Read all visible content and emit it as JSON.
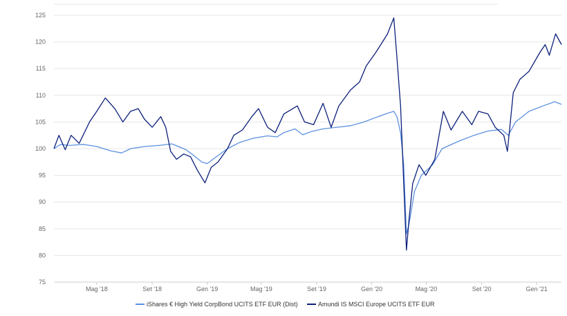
{
  "chart_data": {
    "type": "line",
    "title": "",
    "xlabel": "",
    "ylabel": "",
    "ylim": [
      75,
      125
    ],
    "xlim": [
      "2018-01-26",
      "2021-02-25"
    ],
    "grid": true,
    "legend_position": "bottom",
    "yticks": [
      75,
      80,
      85,
      90,
      95,
      100,
      105,
      110,
      115,
      120,
      125
    ],
    "xticks": [
      {
        "date": "2018-05-01",
        "label": "Mag '18"
      },
      {
        "date": "2018-09-01",
        "label": "Set '18"
      },
      {
        "date": "2019-01-01",
        "label": "Gen '19"
      },
      {
        "date": "2019-05-01",
        "label": "Mag '19"
      },
      {
        "date": "2019-09-01",
        "label": "Set '19"
      },
      {
        "date": "2020-01-01",
        "label": "Gen '20"
      },
      {
        "date": "2020-05-01",
        "label": "Mag '20"
      },
      {
        "date": "2020-09-01",
        "label": "Set '20"
      },
      {
        "date": "2021-01-01",
        "label": "Gen '21"
      }
    ],
    "series": [
      {
        "name": "iShares € High Yield CorpBond UCITS ETF EUR (Dist)",
        "color": "#5b8fe0",
        "points": [
          [
            "2018-01-26",
            100.0
          ],
          [
            "2018-02-10",
            100.8
          ],
          [
            "2018-03-01",
            100.6
          ],
          [
            "2018-04-01",
            100.8
          ],
          [
            "2018-05-01",
            100.4
          ],
          [
            "2018-06-01",
            99.6
          ],
          [
            "2018-06-25",
            99.2
          ],
          [
            "2018-07-15",
            100.0
          ],
          [
            "2018-08-15",
            100.4
          ],
          [
            "2018-09-15",
            100.6
          ],
          [
            "2018-10-15",
            100.9
          ],
          [
            "2018-11-15",
            99.8
          ],
          [
            "2018-12-01",
            98.8
          ],
          [
            "2018-12-20",
            97.5
          ],
          [
            "2019-01-01",
            97.2
          ],
          [
            "2019-01-20",
            98.4
          ],
          [
            "2019-02-15",
            100.0
          ],
          [
            "2019-03-15",
            101.2
          ],
          [
            "2019-04-15",
            102.0
          ],
          [
            "2019-05-15",
            102.4
          ],
          [
            "2019-06-05",
            102.2
          ],
          [
            "2019-06-20",
            103.0
          ],
          [
            "2019-07-15",
            103.7
          ],
          [
            "2019-08-01",
            102.6
          ],
          [
            "2019-08-20",
            103.2
          ],
          [
            "2019-09-15",
            103.7
          ],
          [
            "2019-10-15",
            104.0
          ],
          [
            "2019-11-15",
            104.3
          ],
          [
            "2019-12-15",
            105.0
          ],
          [
            "2020-01-15",
            106.0
          ],
          [
            "2020-02-01",
            106.5
          ],
          [
            "2020-02-19",
            107.0
          ],
          [
            "2020-02-26",
            106.0
          ],
          [
            "2020-03-05",
            103.0
          ],
          [
            "2020-03-12",
            97.0
          ],
          [
            "2020-03-18",
            84.0
          ],
          [
            "2020-03-24",
            86.0
          ],
          [
            "2020-04-05",
            92.0
          ],
          [
            "2020-04-20",
            95.0
          ],
          [
            "2020-05-15",
            97.0
          ],
          [
            "2020-06-05",
            100.0
          ],
          [
            "2020-07-15",
            101.5
          ],
          [
            "2020-08-15",
            102.5
          ],
          [
            "2020-09-15",
            103.3
          ],
          [
            "2020-10-15",
            103.6
          ],
          [
            "2020-10-30",
            102.5
          ],
          [
            "2020-11-15",
            105.0
          ],
          [
            "2020-12-15",
            107.0
          ],
          [
            "2021-01-15",
            108.0
          ],
          [
            "2021-02-10",
            108.8
          ],
          [
            "2021-02-25",
            108.3
          ]
        ]
      },
      {
        "name": "Amundi IS MSCI Europe UCITS ETF EUR",
        "color": "#0b1f7a",
        "points": [
          [
            "2018-01-26",
            100.0
          ],
          [
            "2018-02-06",
            102.5
          ],
          [
            "2018-02-20",
            99.8
          ],
          [
            "2018-03-05",
            102.5
          ],
          [
            "2018-03-23",
            101.0
          ],
          [
            "2018-04-15",
            105.0
          ],
          [
            "2018-05-01",
            107.0
          ],
          [
            "2018-05-20",
            109.5
          ],
          [
            "2018-06-10",
            107.5
          ],
          [
            "2018-06-28",
            105.0
          ],
          [
            "2018-07-15",
            107.0
          ],
          [
            "2018-08-01",
            107.5
          ],
          [
            "2018-08-15",
            105.5
          ],
          [
            "2018-09-01",
            104.0
          ],
          [
            "2018-09-20",
            106.0
          ],
          [
            "2018-10-01",
            104.0
          ],
          [
            "2018-10-12",
            99.5
          ],
          [
            "2018-10-25",
            98.0
          ],
          [
            "2018-11-10",
            99.0
          ],
          [
            "2018-11-25",
            98.5
          ],
          [
            "2018-12-10",
            96.0
          ],
          [
            "2018-12-27",
            93.6
          ],
          [
            "2019-01-10",
            96.5
          ],
          [
            "2019-01-25",
            97.5
          ],
          [
            "2019-02-15",
            100.0
          ],
          [
            "2019-03-01",
            102.5
          ],
          [
            "2019-03-20",
            103.5
          ],
          [
            "2019-04-10",
            106.0
          ],
          [
            "2019-04-25",
            107.5
          ],
          [
            "2019-05-15",
            104.0
          ],
          [
            "2019-06-01",
            103.0
          ],
          [
            "2019-06-20",
            106.5
          ],
          [
            "2019-07-20",
            108.0
          ],
          [
            "2019-08-05",
            105.0
          ],
          [
            "2019-08-25",
            104.5
          ],
          [
            "2019-09-15",
            108.5
          ],
          [
            "2019-10-03",
            104.0
          ],
          [
            "2019-10-20",
            108.0
          ],
          [
            "2019-11-15",
            111.0
          ],
          [
            "2019-12-05",
            112.5
          ],
          [
            "2019-12-20",
            115.5
          ],
          [
            "2020-01-10",
            118.0
          ],
          [
            "2020-01-25",
            120.0
          ],
          [
            "2020-02-05",
            121.5
          ],
          [
            "2020-02-19",
            124.5
          ],
          [
            "2020-02-26",
            117.0
          ],
          [
            "2020-03-05",
            108.0
          ],
          [
            "2020-03-10",
            98.0
          ],
          [
            "2020-03-16",
            85.0
          ],
          [
            "2020-03-18",
            81.0
          ],
          [
            "2020-03-24",
            87.0
          ],
          [
            "2020-04-01",
            93.5
          ],
          [
            "2020-04-15",
            97.0
          ],
          [
            "2020-04-30",
            95.0
          ],
          [
            "2020-05-20",
            98.0
          ],
          [
            "2020-06-08",
            107.0
          ],
          [
            "2020-06-25",
            103.5
          ],
          [
            "2020-07-20",
            107.0
          ],
          [
            "2020-08-10",
            104.5
          ],
          [
            "2020-08-25",
            107.0
          ],
          [
            "2020-09-15",
            106.5
          ],
          [
            "2020-10-01",
            104.0
          ],
          [
            "2020-10-20",
            102.5
          ],
          [
            "2020-10-28",
            99.5
          ],
          [
            "2020-11-10",
            110.5
          ],
          [
            "2020-11-25",
            113.0
          ],
          [
            "2020-12-15",
            114.5
          ],
          [
            "2021-01-08",
            118.0
          ],
          [
            "2021-01-20",
            119.5
          ],
          [
            "2021-01-29",
            117.5
          ],
          [
            "2021-02-12",
            121.5
          ],
          [
            "2021-02-25",
            119.5
          ]
        ]
      }
    ]
  }
}
